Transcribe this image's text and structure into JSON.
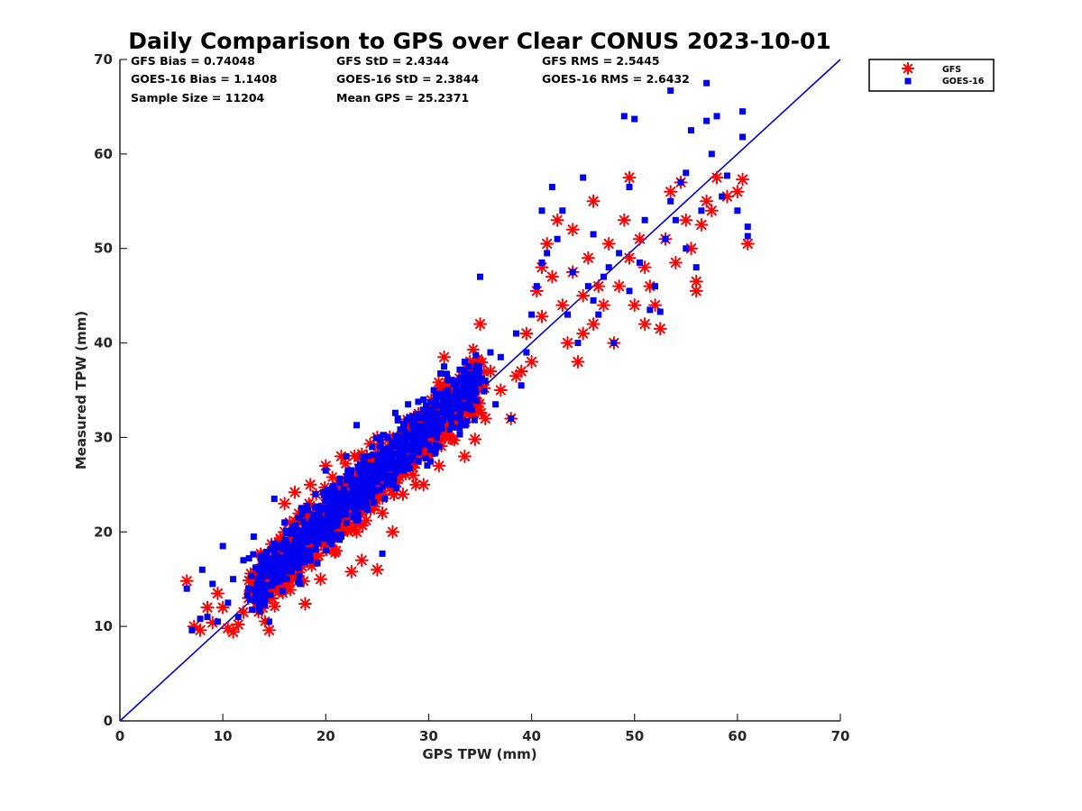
{
  "chart_data": {
    "type": "scatter",
    "title": "Daily Comparison to GPS over Clear CONUS 2023-10-01",
    "xlabel": "GPS TPW (mm)",
    "ylabel": "Measured TPW (mm)",
    "xlim": [
      0,
      70
    ],
    "ylim": [
      0,
      70
    ],
    "xticks": [
      0,
      10,
      20,
      30,
      40,
      50,
      60,
      70
    ],
    "yticks": [
      0,
      10,
      20,
      30,
      40,
      50,
      60,
      70
    ],
    "grid": false,
    "legend_position": "outside-top-right",
    "stats": [
      "GFS Bias = 0.74048",
      "GOES-16 Bias = 1.1408",
      "Sample Size = 11204",
      "GFS StD = 2.4344",
      "GOES-16 StD = 2.3844",
      "Mean GPS = 25.2371",
      "GFS RMS = 2.5445",
      "GOES-16 RMS = 2.6432"
    ],
    "one_to_one_line": {
      "from": [
        0,
        0
      ],
      "to": [
        70,
        70
      ],
      "color": "#0000dd"
    },
    "series": [
      {
        "name": "GFS",
        "marker": "asterisk",
        "color": "#ff0000",
        "points": [
          [
            6.5,
            14.8
          ],
          [
            7.2,
            10
          ],
          [
            7.8,
            9.6
          ],
          [
            8.5,
            12
          ],
          [
            9,
            10.4
          ],
          [
            9.5,
            13.5
          ],
          [
            10,
            12
          ],
          [
            10.5,
            9.8
          ],
          [
            11,
            9.4
          ],
          [
            11.5,
            10.2
          ],
          [
            12,
            11.5
          ],
          [
            12.5,
            13
          ],
          [
            13,
            15
          ],
          [
            13.5,
            12
          ],
          [
            14.5,
            9.6
          ],
          [
            14,
            14
          ],
          [
            15,
            16
          ],
          [
            15.5,
            18
          ],
          [
            16,
            20
          ],
          [
            16,
            23
          ],
          [
            16.5,
            21
          ],
          [
            17,
            24.2
          ],
          [
            17.5,
            19
          ],
          [
            18,
            12.4
          ],
          [
            18,
            22
          ],
          [
            18.5,
            25
          ],
          [
            19,
            17
          ],
          [
            19.5,
            15
          ],
          [
            20,
            27
          ],
          [
            20,
            20
          ],
          [
            20.5,
            23
          ],
          [
            21,
            25
          ],
          [
            21,
            18
          ],
          [
            21.5,
            28
          ],
          [
            22,
            22
          ],
          [
            22.5,
            26
          ],
          [
            22.5,
            15.8
          ],
          [
            23,
            20
          ],
          [
            23.5,
            17
          ],
          [
            24,
            28
          ],
          [
            24.5,
            24
          ],
          [
            25,
            16
          ],
          [
            25,
            30
          ],
          [
            25.5,
            22
          ],
          [
            26,
            26
          ],
          [
            26.5,
            20
          ],
          [
            27,
            28.5
          ],
          [
            27.5,
            24
          ],
          [
            28,
            31
          ],
          [
            28.5,
            26
          ],
          [
            29,
            30
          ],
          [
            29.5,
            25
          ],
          [
            30,
            28
          ],
          [
            30.5,
            33
          ],
          [
            31,
            27
          ],
          [
            31.5,
            38.5
          ],
          [
            32,
            30
          ],
          [
            32.5,
            35
          ],
          [
            33,
            32
          ],
          [
            33.5,
            28
          ],
          [
            34,
            33
          ],
          [
            34.5,
            29.8
          ],
          [
            35,
            42
          ],
          [
            35,
            36
          ],
          [
            35.5,
            32
          ],
          [
            36,
            37
          ],
          [
            37,
            35
          ],
          [
            38,
            32
          ],
          [
            38.5,
            36.5
          ],
          [
            39,
            37
          ],
          [
            39.5,
            41
          ],
          [
            40,
            38
          ],
          [
            40.5,
            45.5
          ],
          [
            41,
            48
          ],
          [
            41,
            42.8
          ],
          [
            41.5,
            50.5
          ],
          [
            42,
            47
          ],
          [
            42.5,
            53
          ],
          [
            43,
            44
          ],
          [
            43.5,
            40
          ],
          [
            44,
            52
          ],
          [
            44,
            47.5
          ],
          [
            44.5,
            38
          ],
          [
            45,
            41
          ],
          [
            45,
            45
          ],
          [
            45.5,
            49
          ],
          [
            46,
            55
          ],
          [
            46,
            42
          ],
          [
            46.5,
            46
          ],
          [
            47,
            44
          ],
          [
            47.5,
            50.5
          ],
          [
            48,
            40
          ],
          [
            48.5,
            46
          ],
          [
            49,
            53
          ],
          [
            49.5,
            57.5
          ],
          [
            49.5,
            49
          ],
          [
            50,
            44
          ],
          [
            50.5,
            51
          ],
          [
            51,
            48
          ],
          [
            51,
            42
          ],
          [
            51.5,
            46
          ],
          [
            52,
            44
          ],
          [
            52.5,
            41.5
          ],
          [
            53,
            51
          ],
          [
            53.5,
            56
          ],
          [
            54,
            48.5
          ],
          [
            54.5,
            57
          ],
          [
            55,
            53
          ],
          [
            55.5,
            50
          ],
          [
            56,
            45.5
          ],
          [
            56,
            46.5
          ],
          [
            56.5,
            52.5
          ],
          [
            57,
            55
          ],
          [
            57.5,
            54
          ],
          [
            58,
            57.5
          ],
          [
            59,
            55.5
          ],
          [
            60,
            56
          ],
          [
            60.5,
            57.3
          ],
          [
            61,
            50.5
          ]
        ]
      },
      {
        "name": "GOES-16",
        "marker": "square",
        "color": "#0000ee",
        "points": [
          [
            6.5,
            14
          ],
          [
            7,
            9.6
          ],
          [
            7.8,
            10.8
          ],
          [
            8,
            16
          ],
          [
            8.5,
            11
          ],
          [
            9,
            14.5
          ],
          [
            9.5,
            10.5
          ],
          [
            10,
            18.5
          ],
          [
            10.5,
            12.5
          ],
          [
            11,
            15
          ],
          [
            11.5,
            11
          ],
          [
            12,
            17
          ],
          [
            12.5,
            14
          ],
          [
            13,
            19.5
          ],
          [
            13.5,
            16
          ],
          [
            14.5,
            10.5
          ],
          [
            14,
            13
          ],
          [
            15,
            23.5
          ],
          [
            15,
            18
          ],
          [
            15.5,
            15
          ],
          [
            16,
            21
          ],
          [
            16.5,
            16.5
          ],
          [
            17,
            19
          ],
          [
            17.5,
            14.5
          ],
          [
            18,
            22.5
          ],
          [
            18.5,
            17
          ],
          [
            19,
            24
          ],
          [
            19.5,
            20
          ],
          [
            20,
            26.5
          ],
          [
            20.5,
            22
          ],
          [
            21,
            24
          ],
          [
            21.5,
            19.5
          ],
          [
            22,
            28
          ],
          [
            22.5,
            25
          ],
          [
            23,
            31.3
          ],
          [
            23.5,
            26
          ],
          [
            24,
            23
          ],
          [
            24.5,
            29
          ],
          [
            25,
            27
          ],
          [
            25.5,
            17.7
          ],
          [
            26,
            30
          ],
          [
            26.5,
            25
          ],
          [
            27,
            32
          ],
          [
            27.5,
            28
          ],
          [
            28,
            33.5
          ],
          [
            28.5,
            30
          ],
          [
            29,
            27.5
          ],
          [
            29.5,
            34
          ],
          [
            30,
            31
          ],
          [
            30.5,
            35
          ],
          [
            31,
            29
          ],
          [
            31.5,
            37.5
          ],
          [
            32,
            33
          ],
          [
            32.5,
            36
          ],
          [
            33,
            31
          ],
          [
            33.5,
            38
          ],
          [
            34,
            34.5
          ],
          [
            35,
            47
          ],
          [
            35.5,
            36
          ],
          [
            36,
            39
          ],
          [
            36.5,
            33.5
          ],
          [
            37,
            38.5
          ],
          [
            38,
            32
          ],
          [
            38.5,
            41
          ],
          [
            39,
            35.5
          ],
          [
            39.5,
            39
          ],
          [
            40,
            43
          ],
          [
            40.5,
            46
          ],
          [
            41,
            48.5
          ],
          [
            41,
            54
          ],
          [
            41.5,
            49.5
          ],
          [
            42,
            56.5
          ],
          [
            42.5,
            51
          ],
          [
            43,
            54
          ],
          [
            43.5,
            43
          ],
          [
            44,
            47.5
          ],
          [
            44.5,
            40
          ],
          [
            45,
            57.5
          ],
          [
            45.5,
            46
          ],
          [
            46,
            44.5
          ],
          [
            46,
            51.5
          ],
          [
            46.5,
            43
          ],
          [
            47,
            47
          ],
          [
            47.5,
            48
          ],
          [
            48,
            40
          ],
          [
            48.5,
            49.5
          ],
          [
            49,
            64
          ],
          [
            49.5,
            56.5
          ],
          [
            49.5,
            45.5
          ],
          [
            50,
            63.7
          ],
          [
            50.5,
            48.5
          ],
          [
            51,
            53
          ],
          [
            51.5,
            43.5
          ],
          [
            52,
            46
          ],
          [
            52.5,
            43.3
          ],
          [
            53,
            51
          ],
          [
            53.5,
            66.7
          ],
          [
            53.5,
            55
          ],
          [
            54,
            53
          ],
          [
            54.5,
            57
          ],
          [
            55,
            58
          ],
          [
            55,
            50
          ],
          [
            55.5,
            62.5
          ],
          [
            56,
            48
          ],
          [
            56.5,
            54
          ],
          [
            57,
            67.5
          ],
          [
            57,
            63.5
          ],
          [
            57.5,
            60
          ],
          [
            58,
            64
          ],
          [
            58.5,
            55.5
          ],
          [
            59,
            57.7
          ],
          [
            60,
            54
          ],
          [
            60.5,
            64.5
          ],
          [
            60.5,
            61.8
          ],
          [
            61,
            52.3
          ],
          [
            61,
            51.3
          ]
        ]
      }
    ]
  }
}
